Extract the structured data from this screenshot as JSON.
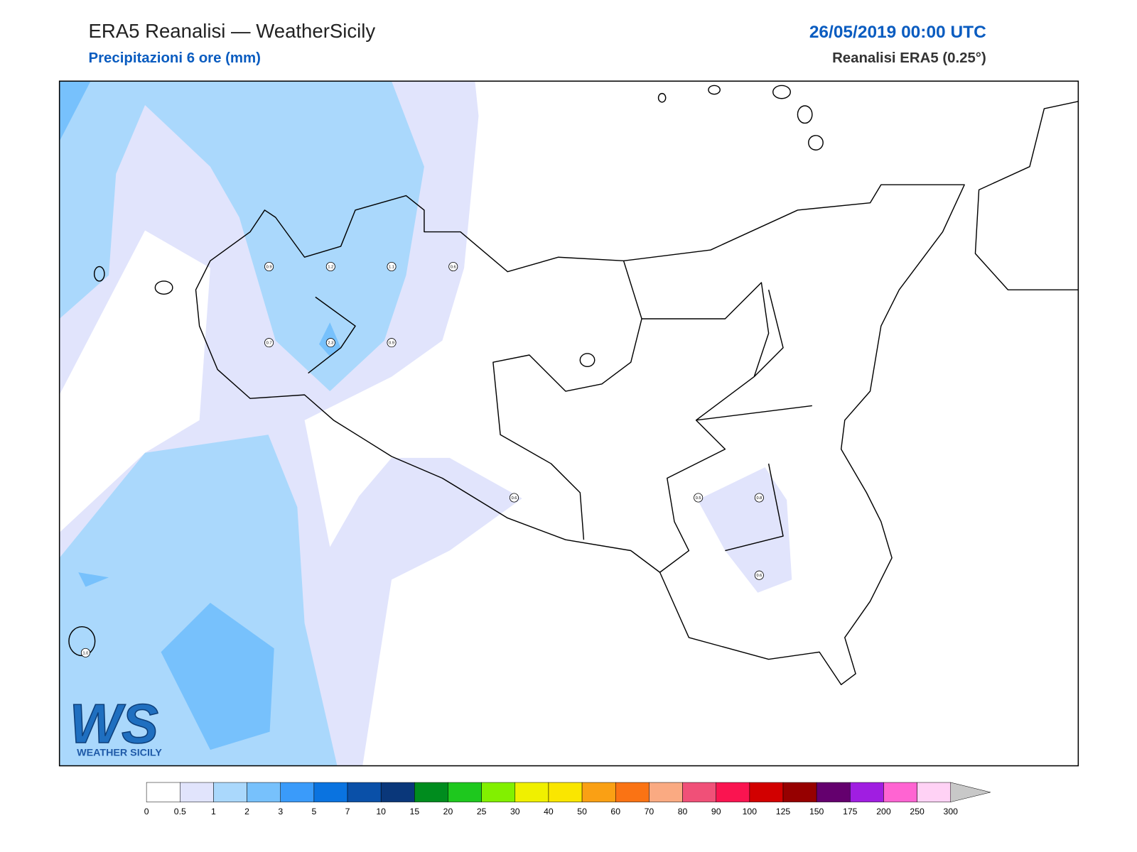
{
  "header": {
    "title": "ERA5 Reanalisi — WeatherSicily",
    "subtitle": "Precipitazioni 6 ore (mm)",
    "datetime": "26/05/2019 00:00 UTC",
    "source": "Reanalisi ERA5 (0.25°)"
  },
  "stations": [
    {
      "label": "0.9"
    },
    {
      "label": "1.2"
    },
    {
      "label": "1.1"
    },
    {
      "label": "0.6"
    },
    {
      "label": "0.7"
    },
    {
      "label": "2.3"
    },
    {
      "label": "0.9"
    },
    {
      "label": "0.6"
    },
    {
      "label": "0.5"
    },
    {
      "label": "0.8"
    },
    {
      "label": "0.6"
    },
    {
      "label": "1.0"
    }
  ],
  "legend": {
    "levels": [
      0,
      0.5,
      1,
      2,
      3,
      5,
      7,
      10,
      15,
      20,
      25,
      30,
      40,
      50,
      60,
      70,
      80,
      90,
      100,
      125,
      150,
      175,
      200,
      250,
      300
    ],
    "colors": [
      "#ffffff",
      "#e1e4fc",
      "#aad8fc",
      "#77c1fc",
      "#3a9bfa",
      "#0a73e0",
      "#0a50a8",
      "#0a377a",
      "#008c1e",
      "#1ec81e",
      "#82f000",
      "#f0f000",
      "#fae600",
      "#faa014",
      "#fa7314",
      "#faaa82",
      "#f05078",
      "#fa1450",
      "#d20000",
      "#960000",
      "#64006e",
      "#a01ee1",
      "#ff64d2",
      "#ffd2f5"
    ],
    "extend_color": "#c8c8c8"
  },
  "logo": {
    "mark": "WS",
    "text": "WEATHER SICILY"
  }
}
